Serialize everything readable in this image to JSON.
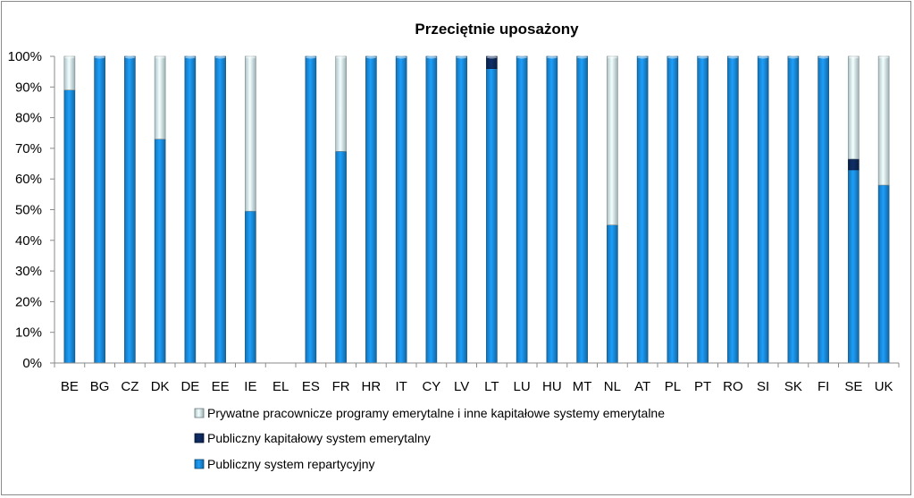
{
  "chart_data": {
    "type": "bar",
    "stacked": true,
    "title": "Przeciętnie uposażony",
    "xlabel": "",
    "ylabel": "",
    "ylim": [
      0,
      100
    ],
    "y_unit": "%",
    "y_ticks": [
      "0%",
      "10%",
      "20%",
      "30%",
      "40%",
      "50%",
      "60%",
      "70%",
      "80%",
      "90%",
      "100%"
    ],
    "grid": false,
    "legend_position": "bottom",
    "categories": [
      "BE",
      "BG",
      "CZ",
      "DK",
      "DE",
      "EE",
      "IE",
      "EL",
      "ES",
      "FR",
      "HR",
      "IT",
      "CY",
      "LV",
      "LT",
      "LU",
      "HU",
      "MT",
      "NL",
      "AT",
      "PL",
      "PT",
      "RO",
      "SI",
      "SK",
      "FI",
      "SE",
      "UK"
    ],
    "series": [
      {
        "name": "Publiczny system repartycyjny",
        "color": "#1a8ee0",
        "values": [
          89,
          100,
          100,
          73,
          100,
          100,
          49.5,
          0,
          100,
          69,
          100,
          100,
          100,
          100,
          96,
          100,
          100,
          100,
          45,
          100,
          100,
          100,
          100,
          100,
          100,
          100,
          63,
          58
        ]
      },
      {
        "name": "Publiczny kapitałowy system emerytalny",
        "color": "#0d2a5e",
        "values": [
          0,
          0,
          0,
          0,
          0,
          0,
          0,
          0,
          0,
          0,
          0,
          0,
          0,
          0,
          4,
          0,
          0,
          0,
          0,
          0,
          0,
          0,
          0,
          0,
          0,
          0,
          3.5,
          0
        ]
      },
      {
        "name": "Prywatne pracownicze programy emerytalne i inne kapitałowe systemy emerytalne",
        "color": "#d9f4f9",
        "values": [
          11,
          0,
          0,
          27,
          0,
          0,
          50.5,
          0,
          0,
          31,
          0,
          0,
          0,
          0,
          0,
          0,
          0,
          0,
          55,
          0,
          0,
          0,
          0,
          0,
          0,
          0,
          33.5,
          42
        ]
      }
    ],
    "legend_order": [
      2,
      1,
      0
    ]
  }
}
